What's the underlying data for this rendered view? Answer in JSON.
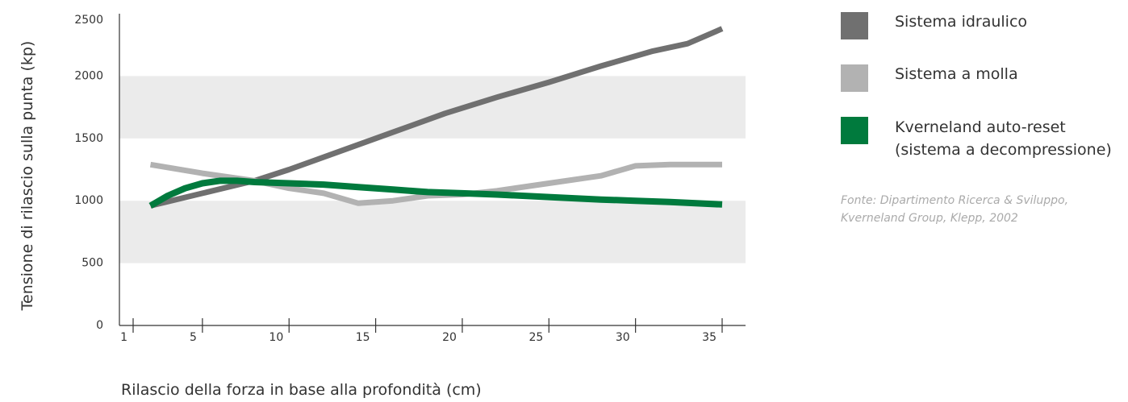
{
  "chart_data": {
    "type": "line",
    "ylabel": "Tensione di rilascio sulla punta (kp)",
    "xlabel": "Rilascio della forza in base alla profondità (cm)",
    "ylim": [
      0,
      2500
    ],
    "xlim": [
      1,
      35
    ],
    "yticks": [
      "0",
      "500",
      "1000",
      "1500",
      "2000",
      "2500"
    ],
    "xticks": [
      "1",
      "5",
      "10",
      "15",
      "20",
      "25",
      "30",
      "35"
    ],
    "series": [
      {
        "name": "Sistema idraulico",
        "color": "#707070",
        "x": [
          2,
          5,
          8,
          10,
          13,
          16,
          19,
          22,
          25,
          28,
          31,
          33,
          35
        ],
        "y": [
          960,
          1060,
          1160,
          1250,
          1400,
          1550,
          1700,
          1830,
          1950,
          2080,
          2200,
          2260,
          2380
        ]
      },
      {
        "name": "Sistema a molla",
        "color": "#b2b2b2",
        "x": [
          2,
          5,
          8,
          10,
          12,
          14,
          16,
          18,
          20,
          22,
          25,
          28,
          30,
          32,
          35
        ],
        "y": [
          1290,
          1220,
          1160,
          1100,
          1060,
          980,
          1000,
          1040,
          1050,
          1080,
          1140,
          1200,
          1280,
          1290,
          1290
        ]
      },
      {
        "name": "Kverneland auto-reset (sistema a decompressione)",
        "color": "#007a3d",
        "x": [
          2,
          3,
          4,
          5,
          6,
          7,
          8,
          10,
          12,
          14,
          16,
          18,
          20,
          22,
          25,
          28,
          30,
          32,
          35
        ],
        "y": [
          960,
          1040,
          1100,
          1140,
          1160,
          1160,
          1150,
          1140,
          1130,
          1110,
          1090,
          1070,
          1060,
          1050,
          1030,
          1010,
          1000,
          990,
          970
        ]
      }
    ],
    "legend": {
      "position": "right",
      "entries": [
        {
          "label": "Sistema idraulico",
          "color": "#707070"
        },
        {
          "label": "Sistema a molla",
          "color": "#b2b2b2"
        },
        {
          "label_line1": "Kverneland auto-reset",
          "label_line2": "(sistema a decompressione)",
          "color": "#007a3d"
        }
      ]
    },
    "source_line1": "Fonte: Dipartimento Ricerca & Sviluppo,",
    "source_line2": "Kverneland Group, Klepp, 2002",
    "band_color": "#ebebeb",
    "grid": false
  }
}
